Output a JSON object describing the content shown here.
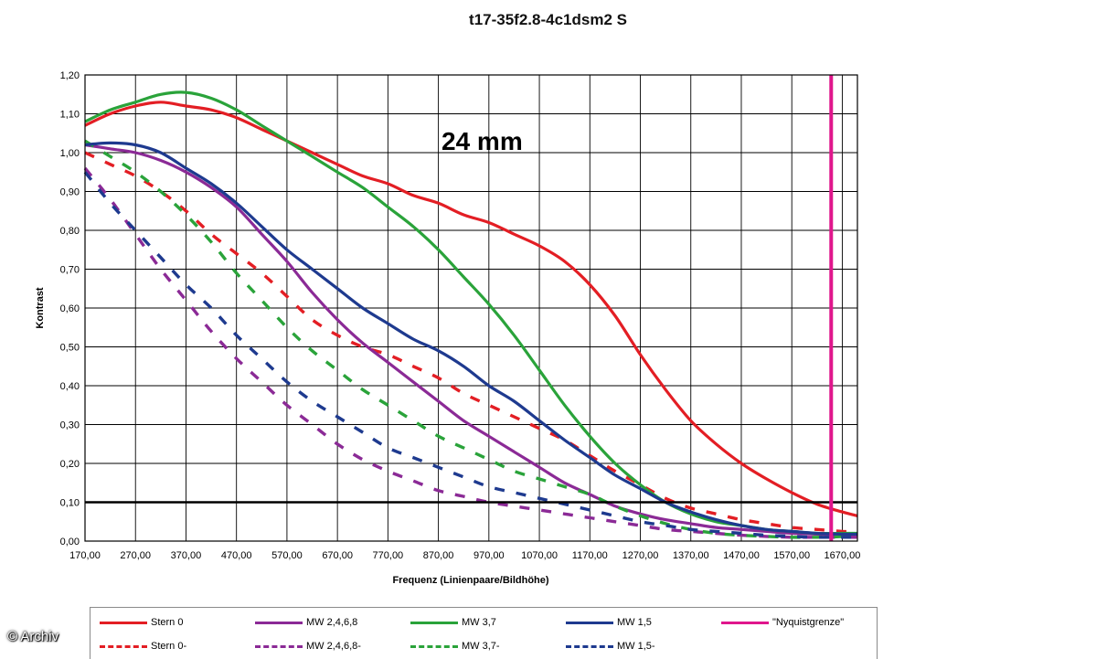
{
  "chart_data": {
    "type": "line",
    "title": "t17-35f2.8-4c1dsm2 S",
    "annotation": "24 mm",
    "xlabel": "Frequenz (Linienpaare/Bildhöhe)",
    "ylabel": "Kontrast",
    "xlim": [
      170,
      1700
    ],
    "ylim": [
      0,
      1.2
    ],
    "x_ticks": [
      "170,00",
      "270,00",
      "370,00",
      "470,00",
      "570,00",
      "670,00",
      "770,00",
      "870,00",
      "970,00",
      "1070,00",
      "1170,00",
      "1270,00",
      "1370,00",
      "1470,00",
      "1570,00",
      "1670,00"
    ],
    "y_ticks": [
      "0,00",
      "0,10",
      "0,20",
      "0,30",
      "0,40",
      "0,50",
      "0,60",
      "0,70",
      "0,80",
      "0,90",
      "1,00",
      "1,10",
      "1,20"
    ],
    "grid": true,
    "reference_line": {
      "y": 0.1,
      "color": "#000000"
    },
    "nyquist": {
      "x": 1648,
      "label": "\"Nyquistgrenze\"",
      "color": "#e0168c"
    },
    "series": [
      {
        "name": "Stern 0",
        "color": "#e31e24",
        "dashed": false,
        "points": [
          [
            170,
            1.07
          ],
          [
            220,
            1.1
          ],
          [
            270,
            1.12
          ],
          [
            320,
            1.13
          ],
          [
            370,
            1.12
          ],
          [
            420,
            1.11
          ],
          [
            470,
            1.09
          ],
          [
            520,
            1.06
          ],
          [
            570,
            1.03
          ],
          [
            620,
            1.0
          ],
          [
            670,
            0.97
          ],
          [
            720,
            0.94
          ],
          [
            770,
            0.92
          ],
          [
            820,
            0.89
          ],
          [
            870,
            0.87
          ],
          [
            920,
            0.84
          ],
          [
            970,
            0.82
          ],
          [
            1020,
            0.79
          ],
          [
            1070,
            0.76
          ],
          [
            1120,
            0.72
          ],
          [
            1170,
            0.66
          ],
          [
            1220,
            0.58
          ],
          [
            1270,
            0.48
          ],
          [
            1320,
            0.39
          ],
          [
            1370,
            0.31
          ],
          [
            1420,
            0.25
          ],
          [
            1470,
            0.2
          ],
          [
            1520,
            0.16
          ],
          [
            1570,
            0.125
          ],
          [
            1620,
            0.095
          ],
          [
            1670,
            0.075
          ],
          [
            1700,
            0.065
          ]
        ]
      },
      {
        "name": "Stern 0-",
        "color": "#e31e24",
        "dashed": true,
        "points": [
          [
            170,
            1.0
          ],
          [
            220,
            0.97
          ],
          [
            270,
            0.94
          ],
          [
            320,
            0.9
          ],
          [
            370,
            0.85
          ],
          [
            420,
            0.79
          ],
          [
            470,
            0.74
          ],
          [
            520,
            0.69
          ],
          [
            570,
            0.63
          ],
          [
            620,
            0.57
          ],
          [
            670,
            0.53
          ],
          [
            720,
            0.5
          ],
          [
            770,
            0.48
          ],
          [
            820,
            0.45
          ],
          [
            870,
            0.42
          ],
          [
            920,
            0.38
          ],
          [
            970,
            0.35
          ],
          [
            1020,
            0.32
          ],
          [
            1070,
            0.29
          ],
          [
            1120,
            0.26
          ],
          [
            1170,
            0.22
          ],
          [
            1220,
            0.18
          ],
          [
            1270,
            0.145
          ],
          [
            1320,
            0.11
          ],
          [
            1370,
            0.085
          ],
          [
            1420,
            0.07
          ],
          [
            1470,
            0.055
          ],
          [
            1520,
            0.045
          ],
          [
            1570,
            0.035
          ],
          [
            1620,
            0.03
          ],
          [
            1670,
            0.025
          ],
          [
            1700,
            0.025
          ]
        ]
      },
      {
        "name": "MW 2,4,6,8",
        "color": "#8b2a96",
        "dashed": false,
        "points": [
          [
            170,
            1.02
          ],
          [
            220,
            1.01
          ],
          [
            270,
            1.0
          ],
          [
            320,
            0.98
          ],
          [
            370,
            0.95
          ],
          [
            420,
            0.91
          ],
          [
            470,
            0.86
          ],
          [
            520,
            0.79
          ],
          [
            570,
            0.72
          ],
          [
            620,
            0.64
          ],
          [
            670,
            0.57
          ],
          [
            720,
            0.51
          ],
          [
            770,
            0.46
          ],
          [
            820,
            0.41
          ],
          [
            870,
            0.36
          ],
          [
            920,
            0.31
          ],
          [
            970,
            0.27
          ],
          [
            1020,
            0.23
          ],
          [
            1070,
            0.19
          ],
          [
            1120,
            0.15
          ],
          [
            1170,
            0.12
          ],
          [
            1220,
            0.09
          ],
          [
            1270,
            0.07
          ],
          [
            1320,
            0.055
          ],
          [
            1370,
            0.045
          ],
          [
            1420,
            0.035
          ],
          [
            1470,
            0.03
          ],
          [
            1520,
            0.025
          ],
          [
            1570,
            0.02
          ],
          [
            1620,
            0.018
          ],
          [
            1670,
            0.015
          ],
          [
            1700,
            0.015
          ]
        ]
      },
      {
        "name": "MW 2,4,6,8-",
        "color": "#8b2a96",
        "dashed": true,
        "points": [
          [
            170,
            0.96
          ],
          [
            220,
            0.88
          ],
          [
            270,
            0.79
          ],
          [
            320,
            0.7
          ],
          [
            370,
            0.62
          ],
          [
            420,
            0.54
          ],
          [
            470,
            0.47
          ],
          [
            520,
            0.41
          ],
          [
            570,
            0.35
          ],
          [
            620,
            0.3
          ],
          [
            670,
            0.25
          ],
          [
            720,
            0.21
          ],
          [
            770,
            0.18
          ],
          [
            820,
            0.155
          ],
          [
            870,
            0.13
          ],
          [
            920,
            0.115
          ],
          [
            970,
            0.1
          ],
          [
            1020,
            0.09
          ],
          [
            1070,
            0.08
          ],
          [
            1120,
            0.07
          ],
          [
            1170,
            0.06
          ],
          [
            1220,
            0.05
          ],
          [
            1270,
            0.04
          ],
          [
            1320,
            0.03
          ],
          [
            1370,
            0.025
          ],
          [
            1420,
            0.02
          ],
          [
            1470,
            0.015
          ],
          [
            1520,
            0.012
          ],
          [
            1570,
            0.01
          ],
          [
            1620,
            0.01
          ],
          [
            1670,
            0.01
          ],
          [
            1700,
            0.01
          ]
        ]
      },
      {
        "name": "MW 3,7",
        "color": "#2aa33a",
        "dashed": false,
        "points": [
          [
            170,
            1.08
          ],
          [
            220,
            1.11
          ],
          [
            270,
            1.13
          ],
          [
            320,
            1.15
          ],
          [
            370,
            1.155
          ],
          [
            420,
            1.14
          ],
          [
            470,
            1.11
          ],
          [
            520,
            1.07
          ],
          [
            570,
            1.03
          ],
          [
            620,
            0.99
          ],
          [
            670,
            0.95
          ],
          [
            720,
            0.91
          ],
          [
            770,
            0.86
          ],
          [
            820,
            0.81
          ],
          [
            870,
            0.75
          ],
          [
            920,
            0.68
          ],
          [
            970,
            0.61
          ],
          [
            1020,
            0.53
          ],
          [
            1070,
            0.44
          ],
          [
            1120,
            0.35
          ],
          [
            1170,
            0.27
          ],
          [
            1220,
            0.2
          ],
          [
            1270,
            0.145
          ],
          [
            1320,
            0.1
          ],
          [
            1370,
            0.07
          ],
          [
            1420,
            0.05
          ],
          [
            1470,
            0.04
          ],
          [
            1520,
            0.03
          ],
          [
            1570,
            0.025
          ],
          [
            1620,
            0.02
          ],
          [
            1670,
            0.02
          ],
          [
            1700,
            0.02
          ]
        ]
      },
      {
        "name": "MW 3,7-",
        "color": "#2aa33a",
        "dashed": true,
        "points": [
          [
            170,
            1.03
          ],
          [
            220,
            0.99
          ],
          [
            270,
            0.95
          ],
          [
            320,
            0.9
          ],
          [
            370,
            0.84
          ],
          [
            420,
            0.77
          ],
          [
            470,
            0.69
          ],
          [
            520,
            0.62
          ],
          [
            570,
            0.55
          ],
          [
            620,
            0.49
          ],
          [
            670,
            0.44
          ],
          [
            720,
            0.39
          ],
          [
            770,
            0.35
          ],
          [
            820,
            0.31
          ],
          [
            870,
            0.27
          ],
          [
            920,
            0.24
          ],
          [
            970,
            0.21
          ],
          [
            1020,
            0.18
          ],
          [
            1070,
            0.16
          ],
          [
            1120,
            0.14
          ],
          [
            1170,
            0.12
          ],
          [
            1220,
            0.09
          ],
          [
            1270,
            0.065
          ],
          [
            1320,
            0.045
          ],
          [
            1370,
            0.03
          ],
          [
            1420,
            0.02
          ],
          [
            1470,
            0.015
          ],
          [
            1520,
            0.012
          ],
          [
            1570,
            0.01
          ],
          [
            1620,
            0.01
          ],
          [
            1670,
            0.012
          ],
          [
            1700,
            0.02
          ]
        ]
      },
      {
        "name": "MW 1,5",
        "color": "#1e3a8f",
        "dashed": false,
        "points": [
          [
            170,
            1.02
          ],
          [
            220,
            1.025
          ],
          [
            270,
            1.02
          ],
          [
            320,
            1.0
          ],
          [
            370,
            0.96
          ],
          [
            420,
            0.92
          ],
          [
            470,
            0.87
          ],
          [
            520,
            0.81
          ],
          [
            570,
            0.75
          ],
          [
            620,
            0.7
          ],
          [
            670,
            0.65
          ],
          [
            720,
            0.6
          ],
          [
            770,
            0.56
          ],
          [
            820,
            0.52
          ],
          [
            870,
            0.49
          ],
          [
            920,
            0.45
          ],
          [
            970,
            0.4
          ],
          [
            1020,
            0.36
          ],
          [
            1070,
            0.31
          ],
          [
            1120,
            0.26
          ],
          [
            1170,
            0.215
          ],
          [
            1220,
            0.17
          ],
          [
            1270,
            0.135
          ],
          [
            1320,
            0.1
          ],
          [
            1370,
            0.075
          ],
          [
            1420,
            0.055
          ],
          [
            1470,
            0.04
          ],
          [
            1520,
            0.03
          ],
          [
            1570,
            0.025
          ],
          [
            1620,
            0.02
          ],
          [
            1670,
            0.018
          ],
          [
            1700,
            0.018
          ]
        ]
      },
      {
        "name": "MW 1,5-",
        "color": "#1e3a8f",
        "dashed": true,
        "points": [
          [
            170,
            0.95
          ],
          [
            220,
            0.87
          ],
          [
            270,
            0.8
          ],
          [
            320,
            0.73
          ],
          [
            370,
            0.66
          ],
          [
            420,
            0.6
          ],
          [
            470,
            0.53
          ],
          [
            520,
            0.47
          ],
          [
            570,
            0.41
          ],
          [
            620,
            0.36
          ],
          [
            670,
            0.32
          ],
          [
            720,
            0.28
          ],
          [
            770,
            0.24
          ],
          [
            820,
            0.215
          ],
          [
            870,
            0.19
          ],
          [
            920,
            0.165
          ],
          [
            970,
            0.14
          ],
          [
            1020,
            0.125
          ],
          [
            1070,
            0.11
          ],
          [
            1120,
            0.095
          ],
          [
            1170,
            0.08
          ],
          [
            1220,
            0.065
          ],
          [
            1270,
            0.05
          ],
          [
            1320,
            0.04
          ],
          [
            1370,
            0.03
          ],
          [
            1420,
            0.025
          ],
          [
            1470,
            0.02
          ],
          [
            1520,
            0.015
          ],
          [
            1570,
            0.012
          ],
          [
            1620,
            0.01
          ],
          [
            1670,
            0.01
          ],
          [
            1700,
            0.01
          ]
        ]
      }
    ]
  },
  "legend": {
    "items": [
      {
        "label": "Stern 0",
        "color": "#e31e24",
        "dashed": false
      },
      {
        "label": "MW 2,4,6,8",
        "color": "#8b2a96",
        "dashed": false
      },
      {
        "label": "MW 3,7",
        "color": "#2aa33a",
        "dashed": false
      },
      {
        "label": "MW 1,5",
        "color": "#1e3a8f",
        "dashed": false
      },
      {
        "label": "\"Nyquistgrenze\"",
        "color": "#e0168c",
        "dashed": false
      },
      {
        "label": "Stern 0-",
        "color": "#e31e24",
        "dashed": true
      },
      {
        "label": "MW 2,4,6,8-",
        "color": "#8b2a96",
        "dashed": true
      },
      {
        "label": "MW 3,7-",
        "color": "#2aa33a",
        "dashed": true
      },
      {
        "label": "MW 1,5-",
        "color": "#1e3a8f",
        "dashed": true
      }
    ]
  },
  "watermark": "© Archiv"
}
